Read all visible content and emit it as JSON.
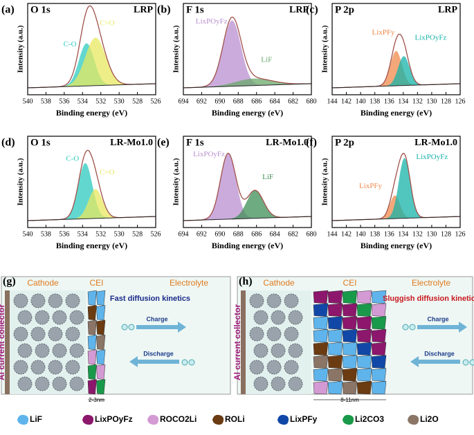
{
  "panels": [
    {
      "letter": "(a)",
      "element": "O 1s",
      "sample": "LRP",
      "xticks": [
        "540",
        "538",
        "536",
        "534",
        "532",
        "530",
        "528",
        "526"
      ],
      "ylabel": "Intensity (a.u.)",
      "xlabel": "Binding energy (eV)",
      "peaks": [
        {
          "label": "C-O",
          "color": "#2ec9c0"
        },
        {
          "label": "C=O",
          "color": "#e8e860"
        }
      ]
    },
    {
      "letter": "(b)",
      "element": "F 1s",
      "sample": "LRP",
      "xticks": [
        "694",
        "692",
        "690",
        "688",
        "686",
        "684",
        "682",
        "680"
      ],
      "ylabel": "Intensity (a.u.)",
      "xlabel": "Binding energy (eV)",
      "peaks": [
        {
          "label": "LixPOyFz",
          "color": "#b98fd0"
        },
        {
          "label": "LiF",
          "color": "#6aa86a"
        }
      ]
    },
    {
      "letter": "(c)",
      "element": "P 2p",
      "sample": "LRP",
      "xticks": [
        "144",
        "142",
        "140",
        "138",
        "136",
        "134",
        "132",
        "130",
        "128",
        "126"
      ],
      "ylabel": "Intensity (a.u.)",
      "xlabel": "Binding energy (eV)",
      "peaks": [
        {
          "label": "LixPFy",
          "color": "#f08a4b"
        },
        {
          "label": "LixPOyFz",
          "color": "#15b3aa"
        }
      ]
    },
    {
      "letter": "(d)",
      "element": "O 1s",
      "sample": "LR-Mo1.0",
      "xticks": [
        "540",
        "538",
        "536",
        "534",
        "532",
        "530",
        "528",
        "526"
      ],
      "ylabel": "Intensity (a.u.)",
      "xlabel": "Binding energy (eV)",
      "peaks": [
        {
          "label": "C-O",
          "color": "#2ec9c0"
        },
        {
          "label": "C=O",
          "color": "#e8e860"
        }
      ]
    },
    {
      "letter": "(e)",
      "element": "F 1s",
      "sample": "LR-Mo1.0",
      "xticks": [
        "694",
        "692",
        "690",
        "688",
        "686",
        "684",
        "682",
        "680"
      ],
      "ylabel": "Intensity (a.u.)",
      "xlabel": "Binding energy (eV)",
      "peaks": [
        {
          "label": "LixPOyFz",
          "color": "#b98fd0"
        },
        {
          "label": "LiF",
          "color": "#3f8f55"
        }
      ]
    },
    {
      "letter": "(f)",
      "element": "P 2p",
      "sample": "LR-Mo1.0",
      "xticks": [
        "144",
        "142",
        "140",
        "138",
        "136",
        "134",
        "132",
        "130",
        "128",
        "126"
      ],
      "ylabel": "Intensity (a.u.)",
      "xlabel": "Binding energy (eV)",
      "peaks": [
        {
          "label": "LixPFy",
          "color": "#f08a4b"
        },
        {
          "label": "LixPOyFz",
          "color": "#15b3aa"
        }
      ]
    }
  ],
  "schematics": [
    {
      "letter": "(g)",
      "cathode": "Cathode",
      "cei": "CEI",
      "electrolyte": "Electrolyte",
      "kinetics": "Fast diffusion kinetics",
      "charge": "Charge",
      "discharge": "Discharge",
      "collector": "Al current collector",
      "thickness": "2-3nm"
    },
    {
      "letter": "(h)",
      "cathode": "Cathode",
      "cei": "CEI",
      "electrolyte": "Electrolyte",
      "kinetics": "Sluggish diffusion kinetics",
      "charge": "Charge",
      "discharge": "Discharge",
      "collector": "Al current collector",
      "thickness": "8-11nm"
    }
  ],
  "legend": [
    {
      "label": "LiF",
      "color": "#5fb4ec"
    },
    {
      "label": "LixPOyFz",
      "color": "#8c176c"
    },
    {
      "label": "ROCO2Li",
      "color": "#d49ad4"
    },
    {
      "label": "ROLi",
      "color": "#6b3b12"
    },
    {
      "label": "LixPFy",
      "color": "#1148a8"
    },
    {
      "label": "Li2CO3",
      "color": "#19994a"
    },
    {
      "label": "Li2O",
      "color": "#8a7566"
    }
  ]
}
